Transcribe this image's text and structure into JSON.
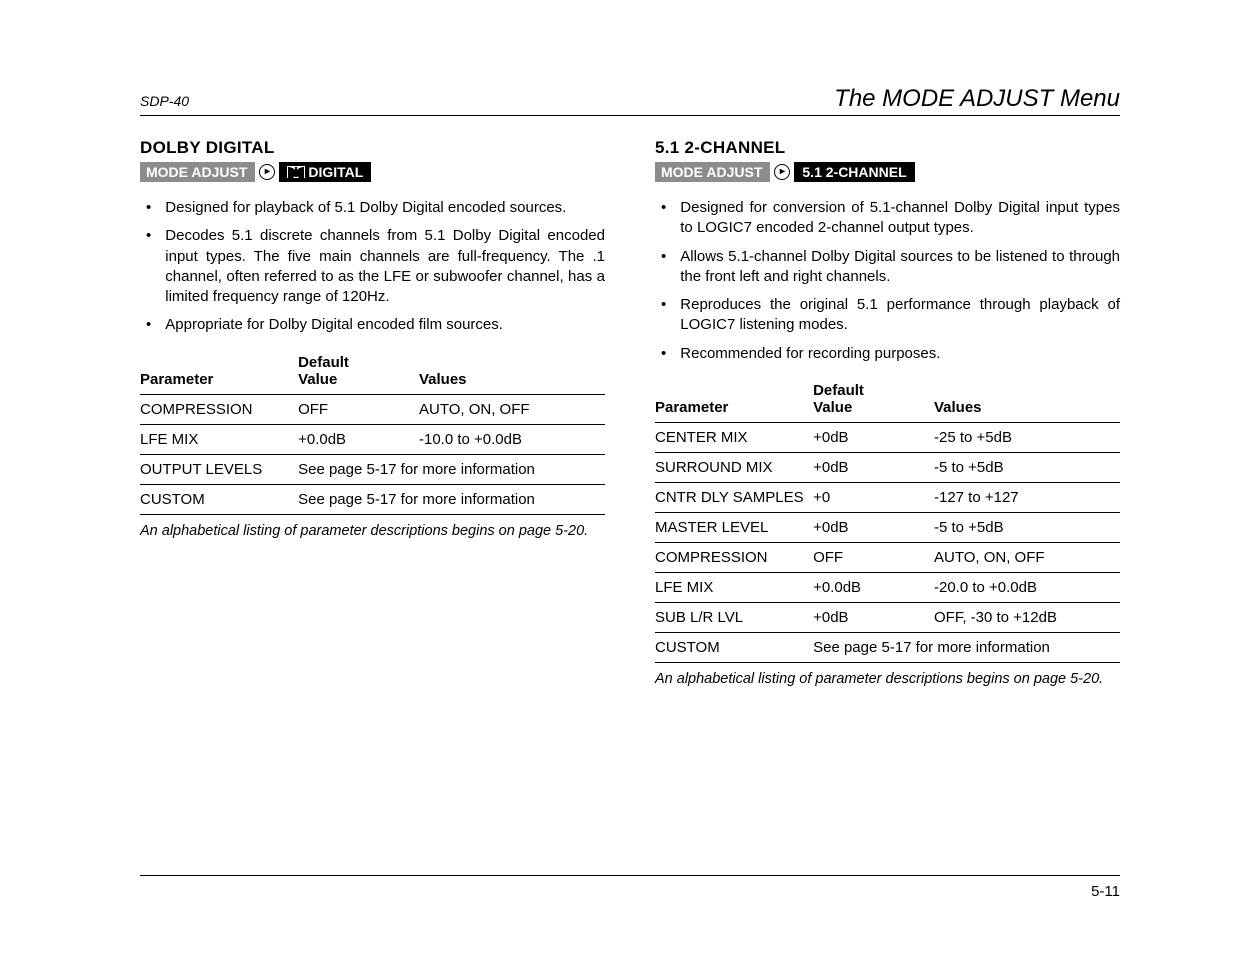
{
  "doc_id": "SDP-40",
  "page_title": "The MODE ADJUST Menu",
  "page_number": "5-11",
  "left": {
    "heading": "DOLBY DIGITAL",
    "crumb_root": "MODE ADJUST",
    "crumb_leaf": "DIGITAL",
    "bullets": [
      "Designed for playback of 5.1 Dolby Digital encoded sources.",
      "Decodes 5.1 discrete channels from 5.1 Dolby Digital encoded input types. The five main channels are full-frequency. The .1 channel, often referred to as the LFE or subwoofer channel, has a limited frequency range of 120Hz.",
      "Appropriate for Dolby Digital encoded film sources."
    ],
    "table": {
      "headers": [
        "Parameter",
        "Default Value",
        "Values"
      ],
      "rows": [
        {
          "cells": [
            "COMPRESSION",
            "OFF",
            "AUTO, ON, OFF"
          ]
        },
        {
          "cells": [
            "LFE MIX",
            "+0.0dB",
            "-10.0 to +0.0dB"
          ]
        },
        {
          "cells": [
            "OUTPUT LEVELS"
          ],
          "span_text": "See page 5-17 for more information"
        },
        {
          "cells": [
            "CUSTOM"
          ],
          "span_text": "See page 5-17 for more information"
        }
      ]
    },
    "caption": "An alphabetical listing of parameter descriptions begins on page 5-20."
  },
  "right": {
    "heading": "5.1 2-CHANNEL",
    "crumb_root": "MODE ADJUST",
    "crumb_leaf": "5.1 2-CHANNEL",
    "bullets": [
      "Designed for conversion of 5.1-channel Dolby Digital input types to LOGIC7 encoded 2-channel output types.",
      "Allows 5.1-channel Dolby Digital sources to be listened to through the front left and right channels.",
      "Reproduces the original 5.1 performance through playback of LOGIC7 listening modes.",
      "Recommended for recording purposes."
    ],
    "table": {
      "headers": [
        "Parameter",
        "Default Value",
        "Values"
      ],
      "rows": [
        {
          "cells": [
            "CENTER MIX",
            "+0dB",
            "-25 to +5dB"
          ]
        },
        {
          "cells": [
            "SURROUND MIX",
            "+0dB",
            "-5 to +5dB"
          ]
        },
        {
          "cells": [
            "CNTR DLY SAMPLES",
            "+0",
            "-127 to +127"
          ]
        },
        {
          "cells": [
            "MASTER LEVEL",
            "+0dB",
            "-5 to +5dB"
          ]
        },
        {
          "cells": [
            "COMPRESSION",
            "OFF",
            "AUTO, ON, OFF"
          ]
        },
        {
          "cells": [
            "LFE MIX",
            "+0.0dB",
            "-20.0 to +0.0dB"
          ]
        },
        {
          "cells": [
            "SUB L/R LVL",
            "+0dB",
            "OFF, -30 to +12dB"
          ]
        },
        {
          "cells": [
            "CUSTOM"
          ],
          "span_text": "See page 5-17 for more information"
        }
      ]
    },
    "caption": "An alphabetical listing of parameter descriptions begins on page 5-20."
  }
}
